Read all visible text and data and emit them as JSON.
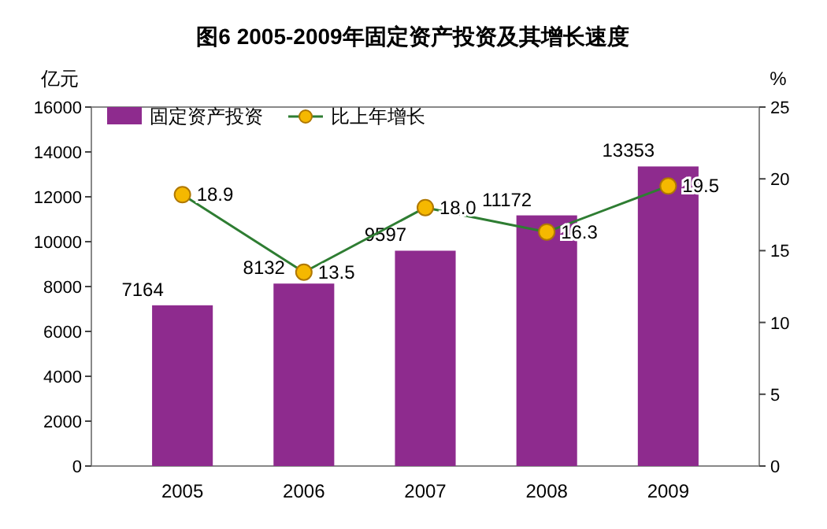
{
  "chart_data": {
    "type": "bar",
    "title": "图6  2005-2009年固定资产投资及其增长速度",
    "categories": [
      "2005",
      "2006",
      "2007",
      "2008",
      "2009"
    ],
    "series": [
      {
        "name": "固定资产投资",
        "color": "#8e2b8e",
        "values": [
          7164,
          8132,
          9597,
          11172,
          13353
        ]
      },
      {
        "name": "比上年增长",
        "type": "line",
        "axis": "y2",
        "color": "#2e7d32",
        "values": [
          18.9,
          13.5,
          18.0,
          16.3,
          19.5
        ],
        "value_labels": [
          "18.9",
          "13.5",
          "18.0",
          "16.3",
          "19.5"
        ]
      }
    ],
    "ylabel": "亿元",
    "y2label": "%",
    "ylim": [
      0,
      16000
    ],
    "yticks": [
      0,
      2000,
      4000,
      6000,
      8000,
      10000,
      12000,
      14000,
      16000
    ],
    "y2lim": [
      0,
      25
    ],
    "y2ticks": [
      0,
      5,
      10,
      15,
      20,
      25
    ],
    "grid": false,
    "legend": "top left",
    "marker": "circle",
    "line_style": "solid",
    "data_labels": true
  }
}
